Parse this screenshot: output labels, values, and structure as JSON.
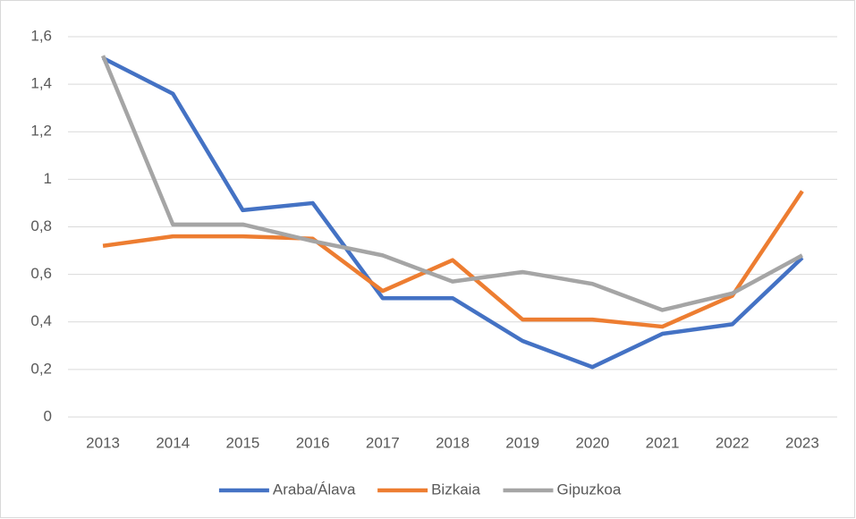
{
  "chart_data": {
    "type": "line",
    "categories": [
      "2013",
      "2014",
      "2015",
      "2016",
      "2017",
      "2018",
      "2019",
      "2020",
      "2021",
      "2022",
      "2023"
    ],
    "series": [
      {
        "name": "Araba/Álava",
        "color": "#4472c4",
        "values": [
          1.51,
          1.36,
          0.87,
          0.9,
          0.5,
          0.5,
          0.32,
          0.21,
          0.35,
          0.39,
          0.67
        ]
      },
      {
        "name": "Bizkaia",
        "color": "#ed7d31",
        "values": [
          0.72,
          0.76,
          0.76,
          0.75,
          0.53,
          0.66,
          0.41,
          0.41,
          0.38,
          0.51,
          0.95
        ]
      },
      {
        "name": "Gipuzkoa",
        "color": "#a5a5a5",
        "values": [
          1.52,
          0.81,
          0.81,
          0.74,
          0.68,
          0.57,
          0.61,
          0.56,
          0.45,
          0.52,
          0.68
        ]
      }
    ],
    "ylim": [
      0,
      1.6
    ],
    "yticks": [
      0,
      {
        "value": 0.2,
        "label": "0,2"
      },
      {
        "value": 0.4,
        "label": "0,4"
      },
      {
        "value": 0.6,
        "label": "0,6"
      },
      {
        "value": 0.8,
        "label": "0,8"
      },
      1,
      {
        "value": 1.2,
        "label": "1,2"
      },
      {
        "value": 1.4,
        "label": "1,4"
      },
      {
        "value": 1.6,
        "label": "1,6"
      }
    ],
    "grid": true,
    "legend": "bottom"
  }
}
